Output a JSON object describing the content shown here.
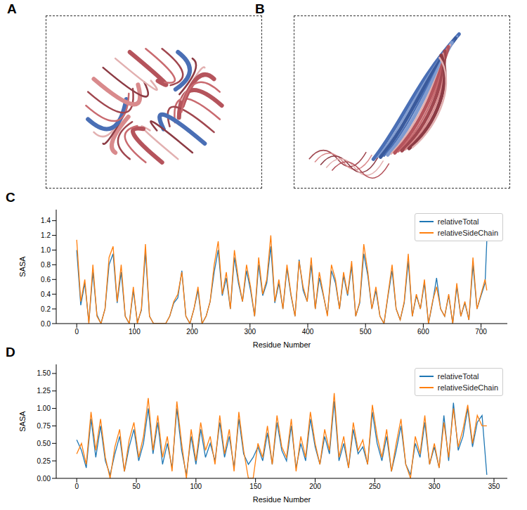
{
  "images": [
    {
      "panel": "A"
    },
    {
      "panel": "B"
    }
  ],
  "chart_data": [
    {
      "panel": "C",
      "type": "line",
      "x_label": "Residue Number",
      "y_label": "SASA",
      "legend": "upper right",
      "xlim": [
        -35.5,
        745.5
      ],
      "xticks": [
        0,
        100,
        200,
        300,
        400,
        500,
        600,
        700
      ],
      "ylim": [
        0,
        1.55
      ],
      "yticks": [
        {
          "value": 0,
          "label": "0.0"
        },
        {
          "value": 0.2,
          "label": "0.2"
        },
        {
          "value": 0.4,
          "label": "0.4"
        },
        {
          "value": 0.6,
          "label": "0.6"
        },
        {
          "value": 0.8,
          "label": "0.8"
        },
        {
          "value": 1,
          "label": "1.0"
        },
        {
          "value": 1.2,
          "label": "1.2"
        },
        {
          "value": 1.4,
          "label": "1.4"
        }
      ],
      "x": [
        0,
        7,
        14,
        21,
        28,
        35,
        42,
        49,
        56,
        63,
        70,
        77,
        84,
        91,
        98,
        105,
        112,
        119,
        126,
        133,
        140,
        147,
        154,
        161,
        168,
        175,
        182,
        189,
        196,
        203,
        210,
        217,
        224,
        231,
        238,
        245,
        252,
        259,
        266,
        273,
        280,
        287,
        294,
        301,
        308,
        315,
        322,
        329,
        336,
        343,
        350,
        357,
        364,
        371,
        378,
        385,
        392,
        399,
        406,
        413,
        420,
        427,
        434,
        441,
        448,
        455,
        462,
        469,
        476,
        483,
        490,
        497,
        504,
        511,
        518,
        525,
        532,
        539,
        546,
        553,
        560,
        567,
        574,
        581,
        588,
        595,
        602,
        609,
        616,
        623,
        630,
        637,
        644,
        651,
        658,
        665,
        672,
        679,
        686,
        693,
        700,
        707,
        710
      ],
      "series": [
        {
          "name": "relativeTotal",
          "color": "#1f77b4",
          "values": [
            1.0,
            0.25,
            0.55,
            0.02,
            0.7,
            0.12,
            0.0,
            0.2,
            0.8,
            0.95,
            0.28,
            0.7,
            0.1,
            0.0,
            0.45,
            0.02,
            0.18,
            0.98,
            0.1,
            0.0,
            0.0,
            0.0,
            0.0,
            0.1,
            0.28,
            0.35,
            0.72,
            0.1,
            0.0,
            0.2,
            0.45,
            0.0,
            0.1,
            0.3,
            0.7,
            1.0,
            0.38,
            0.62,
            0.2,
            0.9,
            0.55,
            0.3,
            0.72,
            0.45,
            0.1,
            0.8,
            0.38,
            0.55,
            1.05,
            0.28,
            0.55,
            0.2,
            0.75,
            0.38,
            0.1,
            0.87,
            0.45,
            0.3,
            0.8,
            0.2,
            0.62,
            0.38,
            0.12,
            0.72,
            0.55,
            0.2,
            0.65,
            0.38,
            0.78,
            0.1,
            0.28,
            0.95,
            0.65,
            0.2,
            0.45,
            0.1,
            0.0,
            0.38,
            0.72,
            0.2,
            0.05,
            0.28,
            0.85,
            0.1,
            0.38,
            0.2,
            0.55,
            0.0,
            0.28,
            0.62,
            0.2,
            0.1,
            0.38,
            0.0,
            0.5,
            0.1,
            0.28,
            0.05,
            0.8,
            0.2,
            0.38,
            0.55,
            1.13
          ]
        },
        {
          "name": "relativeSideChain",
          "color": "#ff7f0e",
          "values": [
            1.14,
            0.3,
            0.6,
            0.0,
            0.8,
            0.1,
            0.0,
            0.2,
            0.9,
            1.05,
            0.3,
            0.8,
            0.1,
            0.0,
            0.5,
            0.0,
            0.2,
            1.08,
            0.1,
            0.0,
            0.0,
            0.0,
            0.0,
            0.1,
            0.3,
            0.4,
            0.7,
            0.1,
            0.0,
            0.2,
            0.5,
            0.0,
            0.1,
            0.3,
            0.8,
            1.12,
            0.4,
            0.7,
            0.2,
            1.0,
            0.6,
            0.3,
            0.8,
            0.5,
            0.1,
            0.9,
            0.4,
            0.6,
            1.2,
            0.3,
            0.6,
            0.2,
            0.8,
            0.4,
            0.1,
            0.85,
            0.5,
            0.3,
            0.9,
            0.2,
            0.7,
            0.4,
            0.1,
            0.8,
            0.6,
            0.2,
            0.7,
            0.4,
            0.85,
            0.1,
            0.3,
            1.08,
            0.7,
            0.2,
            0.5,
            0.1,
            0.0,
            0.4,
            0.8,
            0.2,
            0.05,
            0.3,
            0.95,
            0.1,
            0.4,
            0.2,
            0.6,
            0.0,
            0.3,
            0.5,
            0.2,
            0.1,
            0.4,
            0.0,
            0.55,
            0.1,
            0.3,
            0.05,
            0.9,
            0.2,
            0.4,
            0.6,
            0.45
          ]
        }
      ]
    },
    {
      "panel": "D",
      "type": "line",
      "x_label": "Residue Number",
      "y_label": "SASA",
      "legend": "upper right",
      "xlim": [
        -17.2,
        361.2
      ],
      "xticks": [
        0,
        50,
        100,
        150,
        200,
        250,
        300,
        350
      ],
      "ylim": [
        0,
        1.63
      ],
      "yticks": [
        {
          "value": 0,
          "label": "0.00"
        },
        {
          "value": 0.25,
          "label": "0.25"
        },
        {
          "value": 0.5,
          "label": "0.50"
        },
        {
          "value": 0.75,
          "label": "0.75"
        },
        {
          "value": 1,
          "label": "1.00"
        },
        {
          "value": 1.25,
          "label": "1.25"
        },
        {
          "value": 1.5,
          "label": "1.50"
        }
      ],
      "x": [
        0,
        4,
        8,
        12,
        16,
        20,
        24,
        28,
        32,
        36,
        40,
        44,
        48,
        52,
        56,
        60,
        64,
        68,
        72,
        76,
        80,
        84,
        88,
        92,
        96,
        100,
        104,
        108,
        112,
        116,
        120,
        124,
        128,
        132,
        136,
        140,
        144,
        148,
        152,
        156,
        160,
        164,
        168,
        172,
        176,
        180,
        184,
        188,
        192,
        196,
        200,
        204,
        208,
        212,
        216,
        220,
        224,
        228,
        232,
        236,
        240,
        244,
        248,
        252,
        256,
        260,
        264,
        268,
        272,
        276,
        280,
        284,
        288,
        292,
        296,
        300,
        304,
        308,
        312,
        316,
        320,
        324,
        328,
        332,
        336,
        340,
        344
      ],
      "series": [
        {
          "name": "relativeTotal",
          "color": "#1f77b4",
          "values": [
            0.55,
            0.4,
            0.15,
            0.85,
            0.3,
            0.75,
            0.25,
            0.05,
            0.35,
            0.6,
            0.1,
            0.45,
            0.7,
            0.25,
            0.5,
            1.0,
            0.35,
            0.8,
            0.2,
            0.5,
            0.15,
            1.0,
            0.4,
            0.05,
            0.6,
            0.2,
            0.7,
            0.3,
            0.5,
            0.25,
            0.8,
            0.3,
            0.6,
            0.15,
            0.85,
            0.35,
            0.2,
            0.3,
            0.45,
            0.25,
            0.65,
            0.2,
            0.8,
            0.4,
            0.25,
            0.75,
            0.15,
            0.5,
            0.25,
            0.85,
            0.45,
            0.2,
            0.6,
            0.35,
            1.1,
            0.25,
            0.5,
            0.15,
            0.7,
            0.35,
            0.45,
            0.2,
            0.95,
            0.5,
            0.25,
            0.6,
            0.1,
            0.4,
            0.75,
            0.2,
            0.05,
            0.5,
            0.3,
            0.8,
            0.2,
            0.45,
            0.15,
            0.9,
            0.25,
            1.08,
            0.4,
            0.6,
            1.0,
            0.45,
            0.8,
            0.9,
            0.05
          ]
        },
        {
          "name": "relativeSideChain",
          "color": "#ff7f0e",
          "values": [
            0.35,
            0.5,
            0.2,
            0.95,
            0.4,
            0.85,
            0.3,
            0.0,
            0.45,
            0.7,
            0.1,
            0.55,
            0.8,
            0.3,
            0.6,
            1.15,
            0.4,
            0.9,
            0.3,
            0.6,
            0.1,
            1.1,
            0.5,
            0.0,
            0.7,
            0.25,
            0.8,
            0.4,
            0.6,
            0.2,
            0.9,
            0.35,
            0.7,
            0.1,
            0.95,
            0.4,
            0.0,
            0.0,
            0.5,
            0.3,
            0.75,
            0.2,
            0.9,
            0.45,
            0.3,
            0.85,
            0.1,
            0.6,
            0.3,
            0.95,
            0.5,
            0.2,
            0.7,
            0.4,
            1.22,
            0.3,
            0.6,
            0.15,
            0.8,
            0.4,
            0.55,
            0.2,
            1.05,
            0.6,
            0.3,
            0.7,
            0.1,
            0.5,
            0.85,
            0.2,
            0.0,
            0.6,
            0.35,
            0.9,
            0.2,
            0.5,
            0.15,
            0.8,
            0.3,
            1.0,
            0.45,
            0.7,
            1.05,
            0.5,
            0.9,
            0.75,
            0.75
          ]
        }
      ]
    }
  ]
}
